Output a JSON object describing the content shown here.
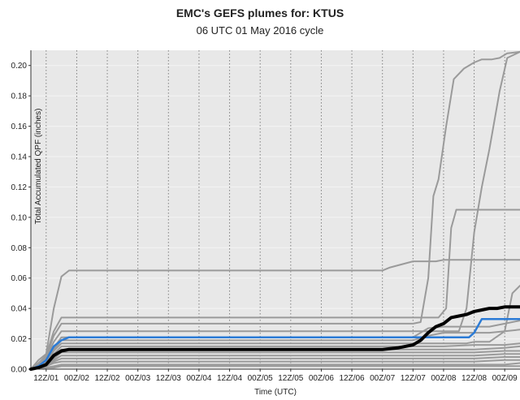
{
  "title": "EMC's GEFS plumes for: KTUS",
  "subtitle": "06 UTC 01 May 2016 cycle",
  "chart_data": {
    "type": "line",
    "title": "EMC's GEFS plumes for: KTUS",
    "subtitle": "06 UTC 01 May 2016 cycle",
    "xlabel": "Time (UTC)",
    "ylabel": "Total Accumulated QPF (inches)",
    "x_units": "hours since 06 UTC 01 May 2016",
    "xlim": [
      0,
      192
    ],
    "ylim": [
      0,
      0.21
    ],
    "xticks": [
      {
        "x": 6,
        "label": "12Z/01"
      },
      {
        "x": 18,
        "label": "00Z/02"
      },
      {
        "x": 30,
        "label": "12Z/02"
      },
      {
        "x": 42,
        "label": "00Z/03"
      },
      {
        "x": 54,
        "label": "12Z/03"
      },
      {
        "x": 66,
        "label": "00Z/04"
      },
      {
        "x": 78,
        "label": "12Z/04"
      },
      {
        "x": 90,
        "label": "00Z/05"
      },
      {
        "x": 102,
        "label": "12Z/05"
      },
      {
        "x": 114,
        "label": "00Z/06"
      },
      {
        "x": 126,
        "label": "12Z/06"
      },
      {
        "x": 138,
        "label": "00Z/07"
      },
      {
        "x": 150,
        "label": "12Z/07"
      },
      {
        "x": 162,
        "label": "00Z/08"
      },
      {
        "x": 174,
        "label": "12Z/08"
      },
      {
        "x": 186,
        "label": "00Z/09"
      }
    ],
    "yticks": [
      0.0,
      0.02,
      0.04,
      0.06,
      0.08,
      0.1,
      0.12,
      0.14,
      0.16,
      0.18,
      0.2
    ],
    "ytick_labels": [
      "0.00",
      "0.02",
      "0.04",
      "0.06",
      "0.08",
      "0.10",
      "0.12",
      "0.14",
      "0.16",
      "0.18",
      "0.20"
    ],
    "grid": true,
    "colors": {
      "background": "#e8e8e8",
      "member": "#9a9a9a",
      "control": "#2b7bd6",
      "mean": "#000000",
      "grid": "#808080"
    },
    "series": [
      {
        "role": "member",
        "x": [
          0,
          3,
          6,
          9,
          12,
          15,
          138,
          141,
          150,
          156,
          159,
          162,
          165,
          168,
          171,
          174,
          177,
          180,
          183,
          186,
          189,
          192
        ],
        "y": [
          0,
          0.006,
          0.01,
          0.04,
          0.061,
          0.065,
          0.065,
          0.067,
          0.071,
          0.071,
          0.071,
          0.072,
          0.072,
          0.072,
          0.072,
          0.072,
          0.072,
          0.072,
          0.072,
          0.072,
          0.072,
          0.072
        ]
      },
      {
        "role": "member",
        "x": [
          0,
          3,
          6,
          9,
          12,
          150,
          153,
          156,
          158,
          160,
          163,
          166,
          170,
          174,
          177,
          181,
          184,
          187,
          192
        ],
        "y": [
          0,
          0.003,
          0.008,
          0.022,
          0.03,
          0.03,
          0.031,
          0.06,
          0.114,
          0.125,
          0.16,
          0.191,
          0.198,
          0.202,
          0.204,
          0.204,
          0.205,
          0.208,
          0.209
        ]
      },
      {
        "role": "member",
        "x": [
          0,
          3,
          6,
          9,
          12,
          150,
          155,
          160,
          163,
          165,
          167,
          170,
          176,
          182,
          188,
          192
        ],
        "y": [
          0,
          0.004,
          0.009,
          0.025,
          0.034,
          0.034,
          0.034,
          0.034,
          0.04,
          0.093,
          0.105,
          0.105,
          0.105,
          0.105,
          0.105,
          0.105
        ]
      },
      {
        "role": "member",
        "x": [
          0,
          3,
          6,
          9,
          12,
          165,
          168,
          171,
          174,
          177,
          180,
          184,
          187,
          192
        ],
        "y": [
          0,
          0.003,
          0.007,
          0.018,
          0.025,
          0.025,
          0.025,
          0.04,
          0.09,
          0.12,
          0.145,
          0.183,
          0.205,
          0.209
        ]
      },
      {
        "role": "member",
        "x": [
          0,
          3,
          6,
          9,
          12,
          168,
          171,
          174,
          180,
          186,
          189,
          192
        ],
        "y": [
          0,
          0.002,
          0.004,
          0.012,
          0.017,
          0.017,
          0.017,
          0.018,
          0.018,
          0.025,
          0.05,
          0.055
        ]
      },
      {
        "role": "member",
        "x": [
          0,
          3,
          6,
          9,
          12,
          150,
          156,
          162,
          168,
          174,
          180,
          186,
          192
        ],
        "y": [
          0,
          0.003,
          0.006,
          0.014,
          0.021,
          0.021,
          0.027,
          0.028,
          0.028,
          0.028,
          0.028,
          0.03,
          0.032
        ]
      },
      {
        "role": "member",
        "x": [
          0,
          3,
          6,
          9,
          12,
          120,
          150,
          156,
          162,
          168,
          174,
          180,
          186,
          192
        ],
        "y": [
          0,
          0.002,
          0.005,
          0.013,
          0.019,
          0.019,
          0.019,
          0.022,
          0.024,
          0.024,
          0.024,
          0.024,
          0.025,
          0.026
        ]
      },
      {
        "role": "member",
        "x": [
          0,
          3,
          6,
          9,
          12,
          150,
          162,
          174,
          186,
          192
        ],
        "y": [
          0,
          0.002,
          0.004,
          0.01,
          0.015,
          0.015,
          0.015,
          0.016,
          0.016,
          0.017
        ]
      },
      {
        "role": "member",
        "x": [
          0,
          3,
          6,
          9,
          12,
          150,
          162,
          174,
          186,
          192
        ],
        "y": [
          0,
          0.002,
          0.004,
          0.009,
          0.013,
          0.013,
          0.013,
          0.013,
          0.014,
          0.015
        ]
      },
      {
        "role": "member",
        "x": [
          0,
          3,
          6,
          9,
          12,
          150,
          162,
          174,
          186,
          192
        ],
        "y": [
          0,
          0.001,
          0.003,
          0.007,
          0.011,
          0.011,
          0.011,
          0.011,
          0.012,
          0.012
        ]
      },
      {
        "role": "member",
        "x": [
          0,
          3,
          6,
          9,
          12,
          150,
          162,
          174,
          186,
          192
        ],
        "y": [
          0,
          0.001,
          0.003,
          0.006,
          0.009,
          0.009,
          0.009,
          0.009,
          0.01,
          0.01
        ]
      },
      {
        "role": "member",
        "x": [
          0,
          3,
          6,
          9,
          12,
          150,
          162,
          174,
          186,
          192
        ],
        "y": [
          0,
          0.001,
          0.002,
          0.005,
          0.007,
          0.007,
          0.007,
          0.007,
          0.008,
          0.008
        ]
      },
      {
        "role": "member",
        "x": [
          0,
          3,
          6,
          9,
          12,
          150,
          162,
          174,
          186,
          192
        ],
        "y": [
          0,
          0.001,
          0.002,
          0.004,
          0.005,
          0.005,
          0.005,
          0.005,
          0.006,
          0.006
        ]
      },
      {
        "role": "member",
        "x": [
          0,
          3,
          6,
          9,
          12,
          150,
          162,
          174,
          186,
          192
        ],
        "y": [
          0,
          0.001,
          0.001,
          0.002,
          0.003,
          0.003,
          0.003,
          0.003,
          0.003,
          0.004
        ]
      },
      {
        "role": "member",
        "x": [
          0,
          3,
          6,
          9,
          12,
          150,
          162,
          174,
          186,
          192
        ],
        "y": [
          0,
          0.0005,
          0.001,
          0.001,
          0.002,
          0.002,
          0.002,
          0.002,
          0.002,
          0.002
        ]
      },
      {
        "role": "control",
        "x": [
          0,
          3,
          6,
          9,
          12,
          15,
          120,
          150,
          156,
          162,
          168,
          172,
          174,
          177,
          180,
          186,
          192
        ],
        "y": [
          0,
          0.002,
          0.006,
          0.015,
          0.019,
          0.021,
          0.021,
          0.021,
          0.021,
          0.021,
          0.021,
          0.021,
          0.024,
          0.033,
          0.033,
          0.033,
          0.033
        ]
      },
      {
        "role": "mean",
        "x": [
          0,
          3,
          6,
          9,
          12,
          15,
          120,
          138,
          144,
          150,
          153,
          156,
          159,
          162,
          165,
          168,
          171,
          174,
          177,
          180,
          183,
          186,
          189,
          192
        ],
        "y": [
          0,
          0.001,
          0.003,
          0.009,
          0.012,
          0.013,
          0.013,
          0.013,
          0.014,
          0.016,
          0.019,
          0.024,
          0.028,
          0.03,
          0.034,
          0.035,
          0.036,
          0.038,
          0.039,
          0.04,
          0.04,
          0.041,
          0.041,
          0.041
        ]
      }
    ]
  }
}
